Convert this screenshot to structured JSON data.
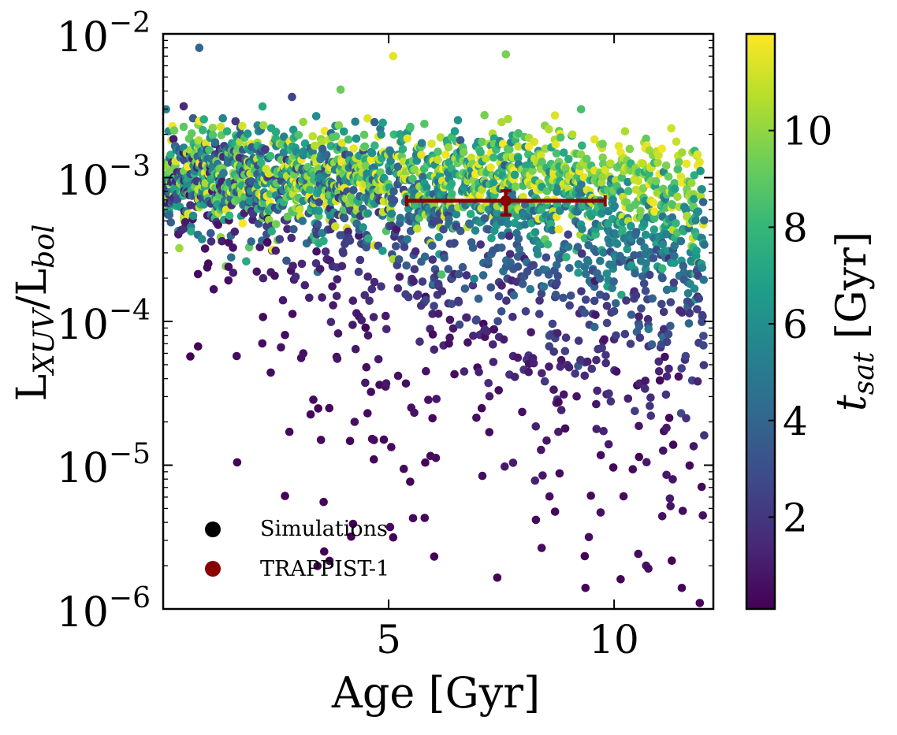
{
  "chart_data": {
    "type": "scatter",
    "xlabel": "Age [Gyr]",
    "ylabel": {
      "base": "L",
      "sub1": "XUV",
      "slash": "/L",
      "sub2": "bol"
    },
    "xlim": [
      0.0,
      12.2
    ],
    "ylim": [
      1e-06,
      0.01
    ],
    "yscale": "log",
    "x_ticks": [
      {
        "value": 5,
        "label": "5"
      },
      {
        "value": 10,
        "label": "10"
      }
    ],
    "y_ticks": [
      {
        "value": 0.01,
        "base": "10",
        "exp": "−2"
      },
      {
        "value": 0.001,
        "base": "10",
        "exp": "−3"
      },
      {
        "value": 0.0001,
        "base": "10",
        "exp": "−4"
      },
      {
        "value": 1e-05,
        "base": "10",
        "exp": "−5"
      },
      {
        "value": 1e-06,
        "base": "10",
        "exp": "−6"
      }
    ],
    "colorbar": {
      "label": {
        "main": "t",
        "sub": "sat",
        "unit": " [Gyr]"
      },
      "cmap": "viridis",
      "range": [
        0.1,
        12.0
      ],
      "ticks": [
        {
          "value": 2,
          "label": "2"
        },
        {
          "value": 4,
          "label": "4"
        },
        {
          "value": 6,
          "label": "6"
        },
        {
          "value": 8,
          "label": "8"
        },
        {
          "value": 10,
          "label": "10"
        }
      ],
      "stops": [
        "#440154",
        "#482878",
        "#3e4989",
        "#31688e",
        "#26828e",
        "#1f9e89",
        "#35b779",
        "#6ece58",
        "#b5de2b",
        "#fde725"
      ]
    },
    "legend": {
      "placement": "lower-left",
      "entries": [
        {
          "label": "Simulations",
          "color": "#000000"
        },
        {
          "label": "TRAPPIST-1",
          "color": "#8b0000"
        }
      ]
    },
    "simulations": {
      "count": 2600,
      "age_range": [
        0.0,
        12.0
      ],
      "tsat_range": [
        0.1,
        12.0
      ],
      "saturated_level": 0.001,
      "saturated_scatter_dex": 0.25,
      "min_value": 1.1e-06,
      "max_value": 0.008,
      "representative_points": [
        {
          "x": 0.8,
          "y": 0.008,
          "tsat": 4.0
        },
        {
          "x": 5.1,
          "y": 0.007,
          "tsat": 11.5
        },
        {
          "x": 7.6,
          "y": 0.0072,
          "tsat": 9.5
        },
        {
          "x": 3.5,
          "y": 1.5e-05,
          "tsat": 0.3
        },
        {
          "x": 5.8,
          "y": 4.3e-06,
          "tsat": 0.3
        },
        {
          "x": 11.5,
          "y": 1.4e-06,
          "tsat": 0.3
        },
        {
          "x": 11.9,
          "y": 1.1e-06,
          "tsat": 0.3
        }
      ]
    },
    "trappist": {
      "age": 7.6,
      "age_err_low": 2.2,
      "age_err_high": 2.2,
      "value": 0.00069,
      "value_err_low": 0.00014,
      "value_err_high": 0.00012,
      "color": "#8b0000"
    }
  }
}
